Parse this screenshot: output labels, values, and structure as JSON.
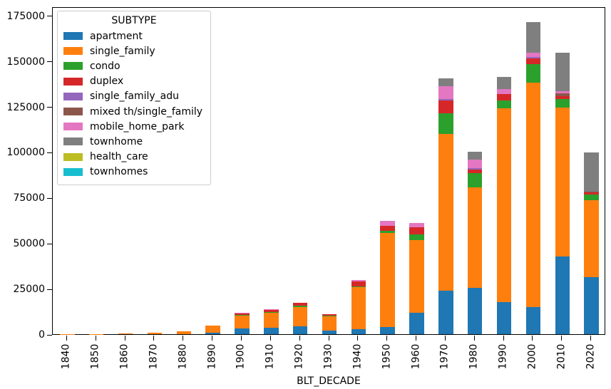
{
  "figure": {
    "background": "#ffffff",
    "text_color": "#000000"
  },
  "legend": {
    "title": "SUBTYPE",
    "position": "upper left"
  },
  "chart_data": {
    "type": "bar",
    "stacked": true,
    "title": "",
    "xlabel": "BLT_DECADE",
    "ylabel": "",
    "ylim": [
      0,
      180000
    ],
    "yticks": [
      0,
      25000,
      50000,
      75000,
      100000,
      125000,
      150000,
      175000
    ],
    "grid": false,
    "legend_title": "SUBTYPE",
    "legend_position": "upper left",
    "categories": [
      "1840",
      "1850",
      "1860",
      "1870",
      "1880",
      "1890",
      "1900",
      "1910",
      "1920",
      "1930",
      "1940",
      "1950",
      "1960",
      "1970",
      "1980",
      "1990",
      "2000",
      "2010",
      "2020"
    ],
    "series": [
      {
        "name": "apartment",
        "color": "#1f77b4",
        "values": [
          0,
          0,
          0,
          0,
          0,
          900,
          3100,
          3400,
          4300,
          1900,
          2700,
          3900,
          11800,
          24000,
          25500,
          17600,
          15000,
          42500,
          31300
        ]
      },
      {
        "name": "single_family",
        "color": "#ff7f0e",
        "values": [
          100,
          150,
          250,
          600,
          1500,
          3700,
          6900,
          8200,
          10400,
          8000,
          23200,
          51700,
          39900,
          85800,
          55000,
          106300,
          123300,
          81800,
          42400
        ]
      },
      {
        "name": "condo",
        "color": "#2ca02c",
        "values": [
          0,
          0,
          0,
          0,
          0,
          0,
          600,
          600,
          1000,
          100,
          200,
          1200,
          3000,
          11400,
          7800,
          4500,
          10000,
          4700,
          3000
        ]
      },
      {
        "name": "duplex",
        "color": "#d62728",
        "values": [
          0,
          0,
          0,
          0,
          0,
          0,
          800,
          1300,
          1600,
          900,
          3000,
          2600,
          3900,
          7000,
          2000,
          3300,
          3000,
          1800,
          1300
        ]
      },
      {
        "name": "single_family_adu",
        "color": "#9467bd",
        "values": [
          0,
          0,
          0,
          0,
          0,
          0,
          0,
          0,
          0,
          0,
          0,
          0,
          0,
          800,
          700,
          0,
          1100,
          0,
          0
        ]
      },
      {
        "name": "mixed th/single_family",
        "color": "#8c564b",
        "values": [
          0,
          0,
          0,
          0,
          0,
          0,
          0,
          0,
          0,
          0,
          0,
          0,
          0,
          0,
          0,
          0,
          0,
          1300,
          400
        ]
      },
      {
        "name": "mobile_home_park",
        "color": "#e377c2",
        "values": [
          0,
          0,
          0,
          0,
          0,
          0,
          200,
          300,
          0,
          0,
          700,
          2800,
          2300,
          7000,
          4800,
          2900,
          2300,
          1300,
          0
        ]
      },
      {
        "name": "townhome",
        "color": "#7f7f7f",
        "values": [
          0,
          0,
          0,
          0,
          0,
          0,
          0,
          0,
          0,
          0,
          0,
          0,
          0,
          4600,
          4300,
          6800,
          16800,
          21200,
          21300
        ]
      },
      {
        "name": "health_care",
        "color": "#bcbd22",
        "values": [
          0,
          0,
          0,
          0,
          0,
          0,
          0,
          0,
          0,
          0,
          0,
          0,
          0,
          0,
          0,
          0,
          0,
          0,
          0
        ]
      },
      {
        "name": "townhomes",
        "color": "#17becf",
        "values": [
          0,
          0,
          0,
          0,
          0,
          0,
          0,
          0,
          0,
          0,
          0,
          0,
          0,
          0,
          0,
          0,
          0,
          0,
          0
        ]
      }
    ]
  }
}
